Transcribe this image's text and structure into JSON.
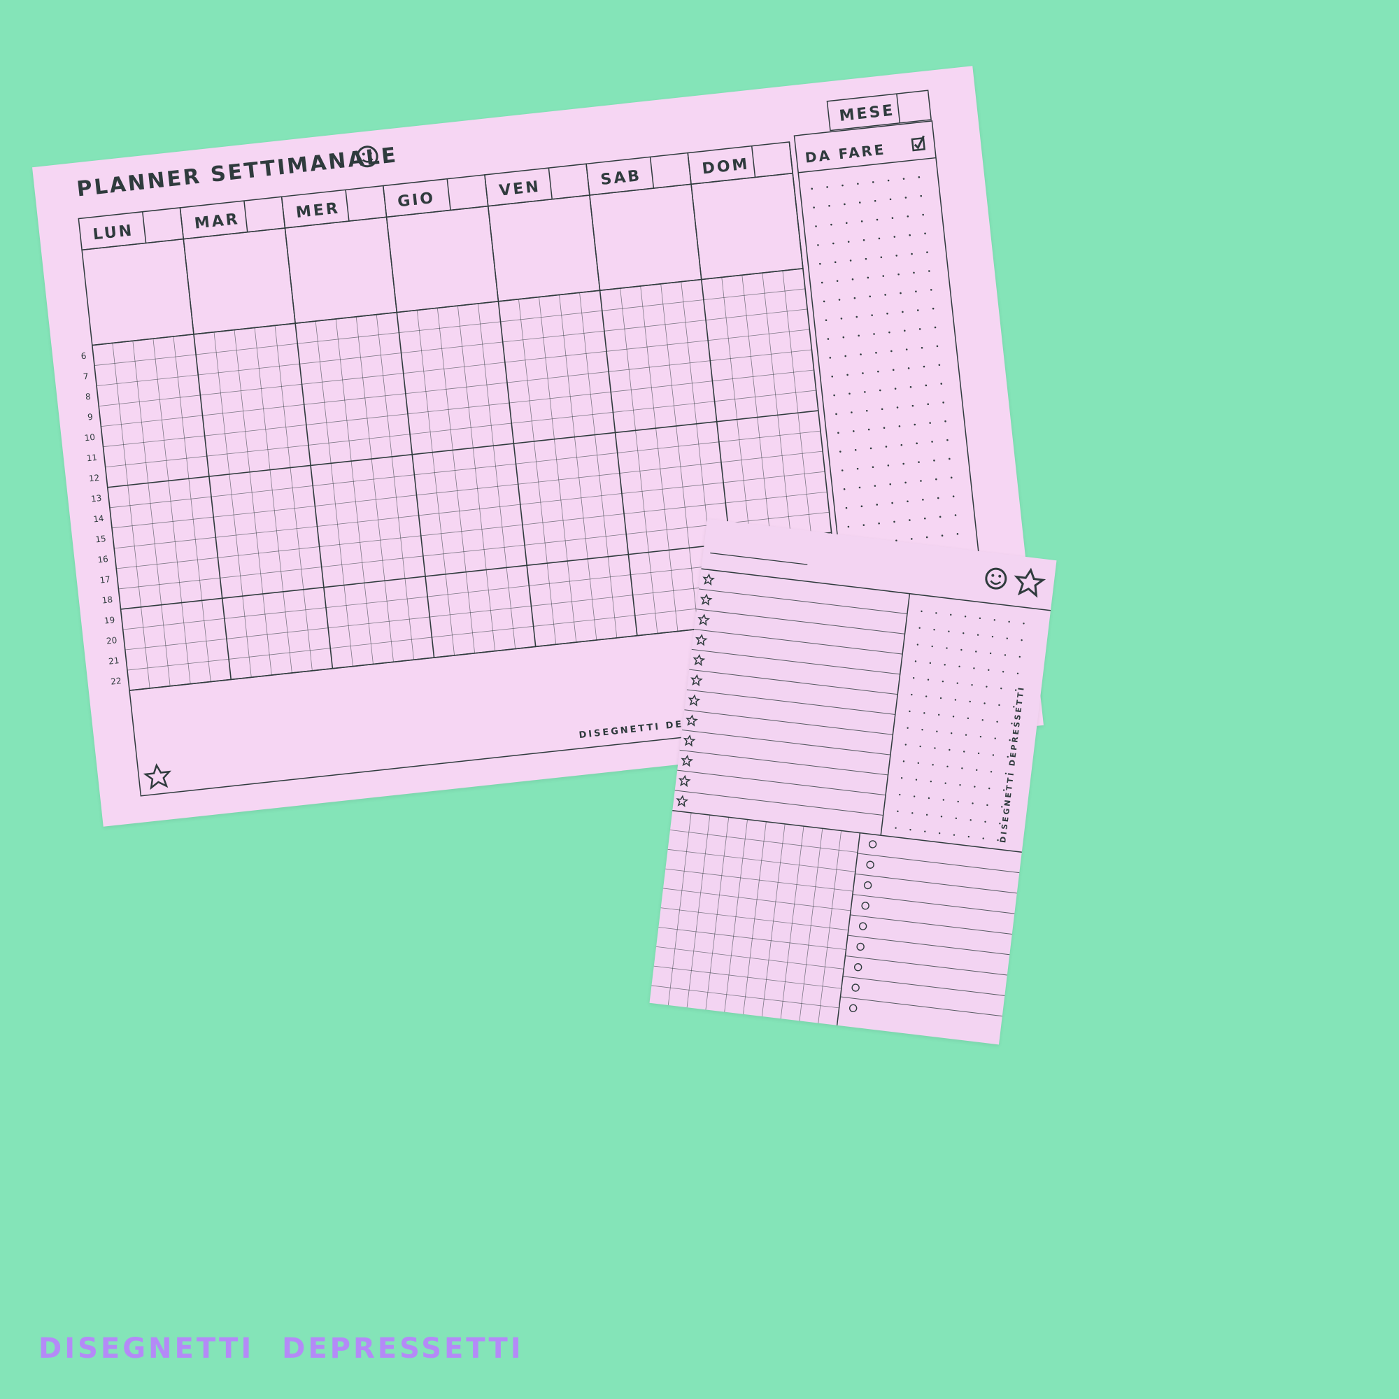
{
  "colors": {
    "background": "#84e4b8",
    "paper": "#f6d6f3",
    "ink": "#2f3b3d",
    "brand": "#b48af7"
  },
  "weekly_planner": {
    "title": "PLANNER SETTIMANALE",
    "month_label": "MESE",
    "todo_label": "DA FARE",
    "days": [
      "LUN",
      "MAR",
      "MER",
      "GIO",
      "VEN",
      "SAB",
      "DOM"
    ],
    "hours": [
      "6",
      "7",
      "8",
      "9",
      "10",
      "11",
      "12",
      "13",
      "14",
      "15",
      "16",
      "17",
      "18",
      "19",
      "20",
      "21",
      "22"
    ],
    "footer": "DISEGNETTI DEPRESSETTI",
    "icons": [
      "smiley-icon",
      "checkbox-icon",
      "star-icon"
    ]
  },
  "daily_notepad": {
    "vertical_text": "DISEGNETTI DEPRESSETTI",
    "icons": [
      "smiley-icon",
      "star-icon",
      "circle-bullet-icon"
    ]
  },
  "brand_caption": "DISEGNETTI DEPRESSETTI"
}
